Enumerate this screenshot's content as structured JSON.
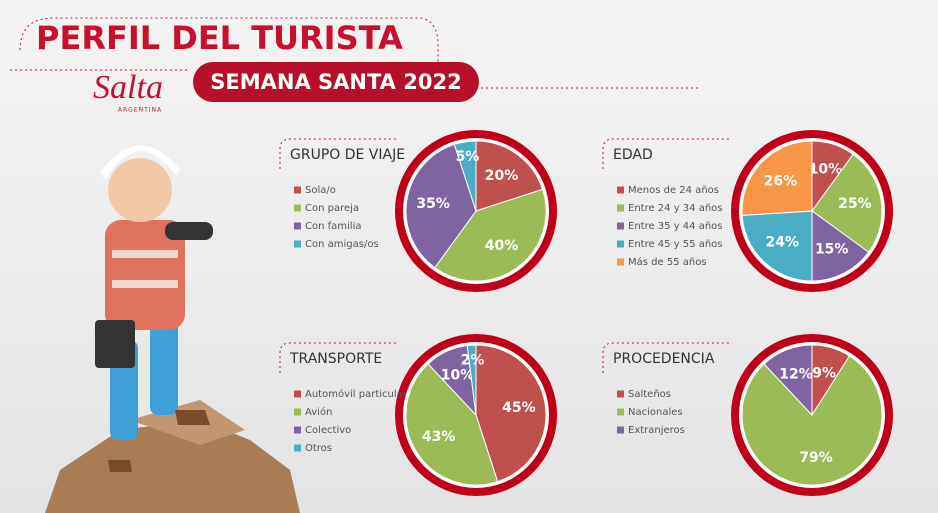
{
  "header": {
    "title": "PERFIL DEL TURISTA",
    "subtitle": "SEMANA SANTA 2022",
    "logo": "Salta",
    "logo_sub": "ARGENTINA"
  },
  "chart_data": [
    {
      "type": "pie",
      "title": "GRUPO DE VIAJE",
      "categories": [
        "Sola/o",
        "Con pareja",
        "Con familia",
        "Con amigas/os"
      ],
      "values": [
        20,
        40,
        35,
        5
      ],
      "value_labels": [
        "20%",
        "40%",
        "35%",
        "5%"
      ],
      "colors": [
        "#c0504d",
        "#9bbb59",
        "#8064a2",
        "#4bacc6"
      ]
    },
    {
      "type": "pie",
      "title": "EDAD",
      "categories": [
        "Menos de 24 años",
        "Entre 24 y 34 años",
        "Entre 35 y 44 años",
        "Entre 45 y 55 años",
        "Más de 55 años"
      ],
      "values": [
        10,
        25,
        15,
        24,
        26
      ],
      "value_labels": [
        "10%",
        "25%",
        "15%",
        "24%",
        "26%"
      ],
      "colors": [
        "#c0504d",
        "#9bbb59",
        "#8064a2",
        "#4bacc6",
        "#f79646"
      ]
    },
    {
      "type": "pie",
      "title": "TRANSPORTE",
      "categories": [
        "Automóvil particular",
        "Avión",
        "Colectivo",
        "Otros"
      ],
      "values": [
        45,
        43,
        10,
        2
      ],
      "value_labels": [
        "45%",
        "43%",
        "10%",
        "2%"
      ],
      "colors": [
        "#c0504d",
        "#9bbb59",
        "#8064a2",
        "#4bacc6"
      ]
    },
    {
      "type": "pie",
      "title": "PROCEDENCIA",
      "categories": [
        "Salteños",
        "Nacionales",
        "Extranjeros"
      ],
      "values": [
        9,
        79,
        12
      ],
      "value_labels": [
        "9%",
        "79%",
        "12%"
      ],
      "colors": [
        "#c0504d",
        "#9bbb59",
        "#8064a2"
      ]
    }
  ]
}
